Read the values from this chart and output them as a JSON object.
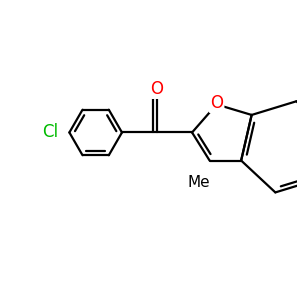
{
  "bg_color": "#ffffff",
  "bond_color": "#000000",
  "bond_lw": 1.6,
  "O_color": "#ff0000",
  "Cl_color": "#00bb00",
  "font_size": 12,
  "me_font_size": 11,
  "fig_size": [
    3.0,
    3.0
  ],
  "dpi": 100,
  "xlim": [
    -4.2,
    4.2
  ],
  "ylim": [
    -3.8,
    3.4
  ]
}
